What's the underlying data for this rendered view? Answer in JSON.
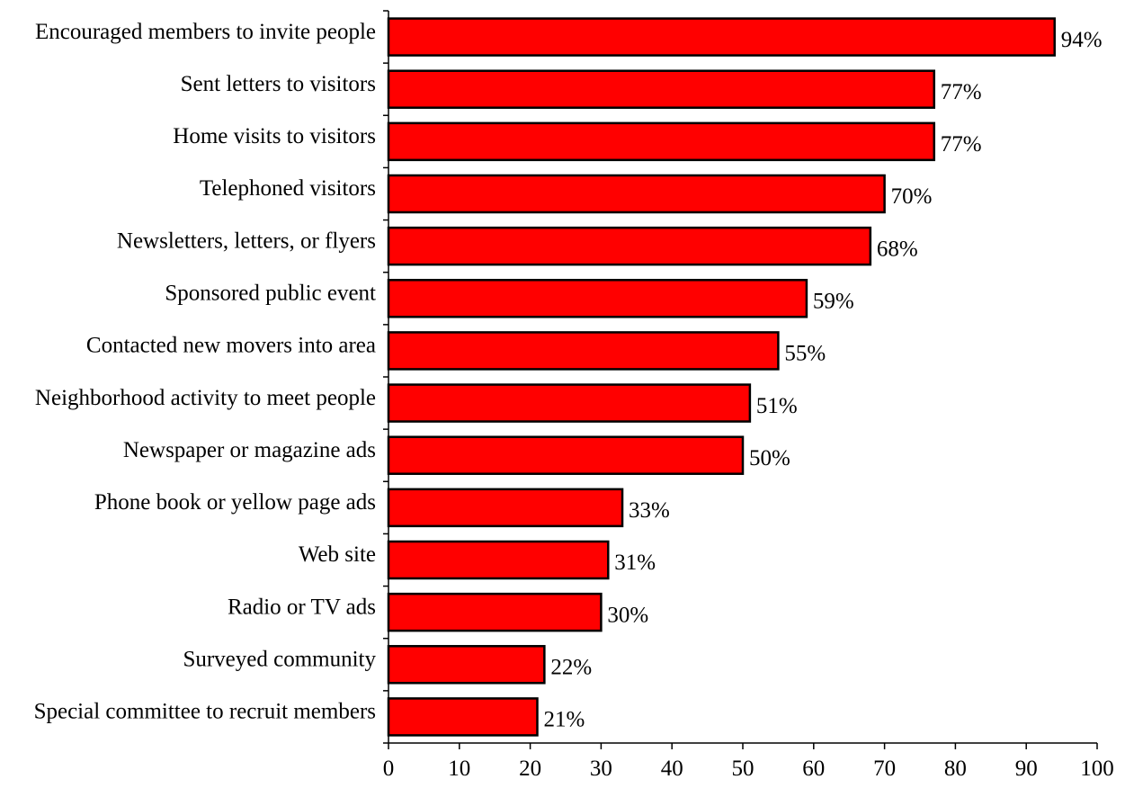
{
  "chart_data": {
    "type": "bar",
    "orientation": "horizontal",
    "title": "",
    "xlabel": "",
    "ylabel": "",
    "categories": [
      "Encouraged members to invite people",
      "Sent letters to visitors",
      "Home visits to visitors",
      "Telephoned visitors",
      "Newsletters, letters, or flyers",
      "Sponsored public event",
      "Contacted new movers into area",
      "Neighborhood activity to meet people",
      "Newspaper or magazine ads",
      "Phone book or yellow page ads",
      "Web site",
      "Radio or TV ads",
      "Surveyed community",
      "Special committee to recruit members"
    ],
    "values": [
      94,
      77,
      77,
      70,
      68,
      59,
      55,
      51,
      50,
      33,
      31,
      30,
      22,
      21
    ],
    "data_labels": [
      "94%",
      "77%",
      "77%",
      "70%",
      "68%",
      "59%",
      "55%",
      "51%",
      "50%",
      "33%",
      "31%",
      "30%",
      "22%",
      "21%"
    ],
    "xlim": [
      0,
      100
    ],
    "xticks": [
      "0",
      "10",
      "20",
      "30",
      "40",
      "50",
      "60",
      "70",
      "80",
      "90",
      "100"
    ],
    "grid": false,
    "legend": "none",
    "bar_color": "#ff0000",
    "bar_edge_color": "#000000"
  }
}
